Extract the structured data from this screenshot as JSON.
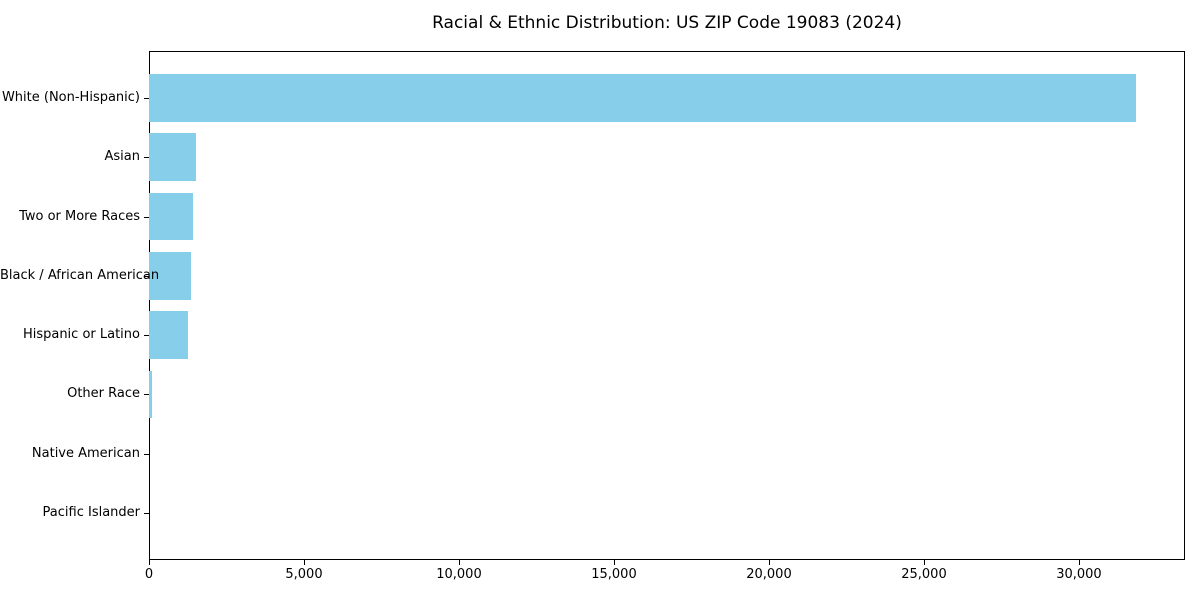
{
  "title": "Racial & Ethnic Distribution: US ZIP Code 19083 (2024)",
  "chart_data": {
    "type": "bar",
    "orientation": "horizontal",
    "title": "Racial & Ethnic Distribution: US ZIP Code 19083 (2024)",
    "categories": [
      "White (Non-Hispanic)",
      "Asian",
      "Two or More Races",
      "Black / African American",
      "Hispanic or Latino",
      "Other Race",
      "Native American",
      "Pacific Islander"
    ],
    "values": [
      31830,
      1520,
      1430,
      1350,
      1250,
      100,
      0,
      0
    ],
    "xlabel": "",
    "ylabel": "",
    "xlim": [
      0,
      33420
    ],
    "xtick_values": [
      0,
      5000,
      10000,
      15000,
      20000,
      25000,
      30000
    ],
    "xtick_labels": [
      "0",
      "5,000",
      "10,000",
      "15,000",
      "20,000",
      "25,000",
      "30,000"
    ],
    "bar_color": "#87CEEB",
    "background": "#FFFFFF",
    "spine_color": "#000000",
    "text_color": "#000000",
    "grid": false,
    "legend": null
  }
}
